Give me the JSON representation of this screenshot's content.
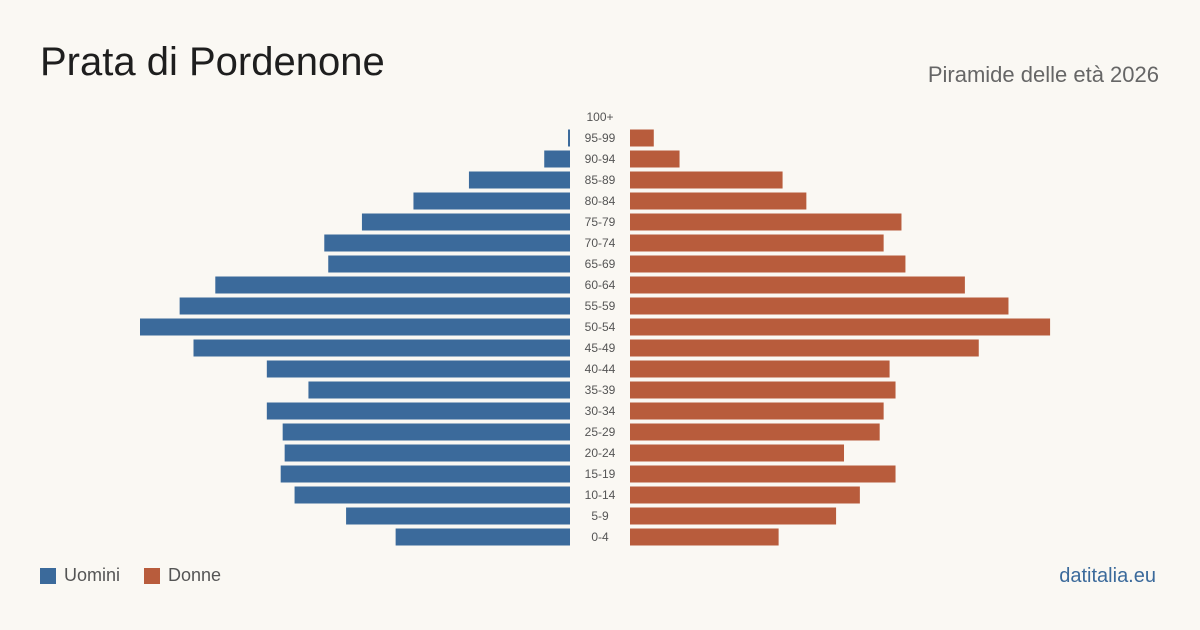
{
  "header": {
    "title": "Prata di Pordenone",
    "subtitle": "Piramide delle età 2026"
  },
  "footer": {
    "site": "datitalia.eu"
  },
  "colors": {
    "men": "#3b6a9b",
    "women": "#b85c3c",
    "label": "#555555"
  },
  "chart_data": {
    "type": "bar",
    "orientation": "horizontal-pyramid",
    "categories": [
      "100+",
      "95-99",
      "90-94",
      "85-89",
      "80-84",
      "75-79",
      "70-74",
      "65-69",
      "60-64",
      "55-59",
      "50-54",
      "45-49",
      "40-44",
      "35-39",
      "30-34",
      "25-29",
      "20-24",
      "15-19",
      "10-14",
      "5-9",
      "0-4"
    ],
    "series": [
      {
        "name": "Uomini",
        "values": [
          0,
          1,
          13,
          51,
          79,
          105,
          124,
          122,
          179,
          197,
          217,
          190,
          153,
          132,
          153,
          145,
          144,
          146,
          139,
          113,
          88
        ]
      },
      {
        "name": "Donne",
        "values": [
          0,
          12,
          25,
          77,
          89,
          137,
          128,
          139,
          169,
          191,
          212,
          176,
          131,
          134,
          128,
          126,
          108,
          134,
          116,
          104,
          75
        ]
      }
    ],
    "legend": "bottom-left"
  }
}
